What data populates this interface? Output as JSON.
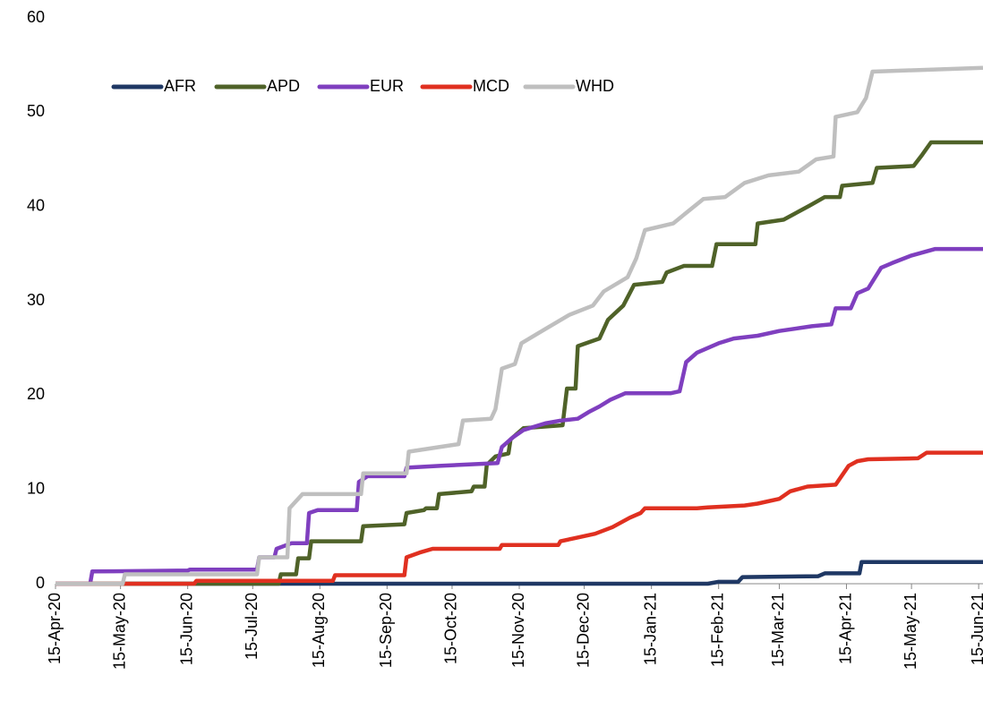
{
  "chart_data": {
    "type": "line",
    "xlim": [
      "2020-04-15",
      "2021-06-17"
    ],
    "xticks": [
      {
        "value": "2020-04-15",
        "label": "15-Apr-20"
      },
      {
        "value": "2020-05-15",
        "label": "15-May-20"
      },
      {
        "value": "2020-06-15",
        "label": "15-Jun-20"
      },
      {
        "value": "2020-07-15",
        "label": "15-Jul-20"
      },
      {
        "value": "2020-08-15",
        "label": "15-Aug-20"
      },
      {
        "value": "2020-09-15",
        "label": "15-Sep-20"
      },
      {
        "value": "2020-10-15",
        "label": "15-Oct-20"
      },
      {
        "value": "2020-11-15",
        "label": "15-Nov-20"
      },
      {
        "value": "2020-12-15",
        "label": "15-Dec-20"
      },
      {
        "value": "2021-01-15",
        "label": "15-Jan-21"
      },
      {
        "value": "2021-02-15",
        "label": "15-Feb-21"
      },
      {
        "value": "2021-03-15",
        "label": "15-Mar-21"
      },
      {
        "value": "2021-04-15",
        "label": "15-Apr-21"
      },
      {
        "value": "2021-05-15",
        "label": "15-May-21"
      },
      {
        "value": "2021-06-15",
        "label": "15-Jun-21"
      }
    ],
    "ylim": [
      0,
      60
    ],
    "yticks": [
      0,
      10,
      20,
      30,
      40,
      50,
      60
    ],
    "grid": false,
    "legend": "top-left",
    "series": [
      {
        "name": "AFR",
        "color": "#1f3864",
        "x": [
          "2020-04-15",
          "2021-02-10",
          "2021-02-15",
          "2021-02-24",
          "2021-02-26",
          "2021-04-02",
          "2021-04-05",
          "2021-04-21",
          "2021-04-22",
          "2021-06-17"
        ],
        "values": [
          0,
          0,
          0.2,
          0.2,
          0.7,
          0.8,
          1.1,
          1.1,
          2.3,
          2.3
        ]
      },
      {
        "name": "APD",
        "color": "#4f6228",
        "x": [
          "2020-04-15",
          "2020-07-27",
          "2020-07-28",
          "2020-08-04",
          "2020-08-05",
          "2020-08-10",
          "2020-08-11",
          "2020-09-03",
          "2020-09-04",
          "2020-09-23",
          "2020-09-24",
          "2020-10-02",
          "2020-10-03",
          "2020-10-08",
          "2020-10-09",
          "2020-10-24",
          "2020-10-25",
          "2020-10-30",
          "2020-10-31",
          "2020-11-04",
          "2020-11-10",
          "2020-11-11",
          "2020-11-17",
          "2020-12-05",
          "2020-12-07",
          "2020-12-11",
          "2020-12-12",
          "2020-12-22",
          "2020-12-26",
          "2021-01-02",
          "2021-01-07",
          "2021-01-20",
          "2021-01-22",
          "2021-01-30",
          "2021-02-12",
          "2021-02-14",
          "2021-03-04",
          "2021-03-05",
          "2021-03-17",
          "2021-03-29",
          "2021-04-05",
          "2021-04-12",
          "2021-04-13",
          "2021-04-27",
          "2021-04-29",
          "2021-05-16",
          "2021-05-20",
          "2021-05-24",
          "2021-06-17"
        ],
        "values": [
          0,
          0,
          1,
          1,
          2.7,
          2.7,
          4.5,
          4.5,
          6.1,
          6.3,
          7.5,
          7.8,
          8,
          8,
          9.5,
          9.8,
          10.3,
          10.3,
          12.6,
          13.5,
          13.8,
          15.3,
          16.5,
          16.8,
          20.7,
          20.7,
          25.2,
          26,
          28,
          29.5,
          31.7,
          32,
          33,
          33.7,
          33.7,
          36,
          36,
          38.2,
          38.6,
          40.1,
          41,
          41,
          42.2,
          42.5,
          44.1,
          44.3,
          45.5,
          46.8,
          46.8
        ]
      },
      {
        "name": "EUR",
        "color": "#7f3fbf",
        "x": [
          "2020-04-15",
          "2020-05-01",
          "2020-05-02",
          "2020-06-15",
          "2020-06-16",
          "2020-07-17",
          "2020-07-18",
          "2020-07-25",
          "2020-07-26",
          "2020-08-02",
          "2020-08-09",
          "2020-08-10",
          "2020-08-14",
          "2020-09-01",
          "2020-09-02",
          "2020-09-06",
          "2020-09-23",
          "2020-09-24",
          "2020-10-10",
          "2020-11-05",
          "2020-11-07",
          "2020-11-12",
          "2020-11-17",
          "2020-11-27",
          "2020-12-04",
          "2020-12-12",
          "2020-12-17",
          "2020-12-22",
          "2020-12-27",
          "2021-01-03",
          "2021-01-24",
          "2021-01-28",
          "2021-01-31",
          "2021-02-05",
          "2021-02-15",
          "2021-02-22",
          "2021-03-05",
          "2021-03-15",
          "2021-03-30",
          "2021-04-08",
          "2021-04-10",
          "2021-04-17",
          "2021-04-20",
          "2021-04-25",
          "2021-05-01",
          "2021-05-06",
          "2021-05-15",
          "2021-05-26",
          "2021-06-17"
        ],
        "values": [
          0,
          0,
          1.3,
          1.4,
          1.5,
          1.5,
          2.8,
          2.8,
          3.7,
          4.3,
          4.3,
          7.5,
          7.8,
          7.8,
          10.8,
          11.4,
          11.4,
          12.3,
          12.5,
          12.8,
          14.5,
          15.5,
          16.3,
          17,
          17.3,
          17.5,
          18.2,
          18.8,
          19.5,
          20.2,
          20.2,
          20.4,
          23.5,
          24.5,
          25.5,
          26,
          26.3,
          26.8,
          27.3,
          27.5,
          29.2,
          29.2,
          30.8,
          31.3,
          33.5,
          34,
          34.8,
          35.5,
          35.5
        ]
      },
      {
        "name": "MCD",
        "color": "#e03020",
        "x": [
          "2020-04-15",
          "2020-06-18",
          "2020-06-19",
          "2020-08-21",
          "2020-08-22",
          "2020-09-23",
          "2020-09-24",
          "2020-09-30",
          "2020-10-06",
          "2020-11-06",
          "2020-11-07",
          "2020-12-03",
          "2020-12-04",
          "2020-12-10",
          "2020-12-20",
          "2020-12-28",
          "2021-01-05",
          "2021-01-10",
          "2021-01-12",
          "2021-02-05",
          "2021-02-10",
          "2021-02-27",
          "2021-03-05",
          "2021-03-15",
          "2021-03-20",
          "2021-03-28",
          "2021-04-10",
          "2021-04-16",
          "2021-04-20",
          "2021-04-25",
          "2021-05-18",
          "2021-05-22",
          "2021-06-17"
        ],
        "values": [
          0,
          0,
          0.3,
          0.3,
          0.9,
          0.9,
          2.8,
          3.3,
          3.7,
          3.7,
          4.1,
          4.1,
          4.5,
          4.8,
          5.3,
          6,
          7,
          7.5,
          8,
          8,
          8.1,
          8.3,
          8.5,
          9,
          9.8,
          10.3,
          10.5,
          12.5,
          13,
          13.2,
          13.3,
          13.9,
          13.9
        ]
      },
      {
        "name": "WHD",
        "color": "#bfbfbf",
        "x": [
          "2020-04-15",
          "2020-05-16",
          "2020-05-17",
          "2020-07-17",
          "2020-07-18",
          "2020-07-31",
          "2020-08-01",
          "2020-08-07",
          "2020-09-03",
          "2020-09-04",
          "2020-09-24",
          "2020-09-25",
          "2020-10-18",
          "2020-10-20",
          "2020-11-02",
          "2020-11-04",
          "2020-11-07",
          "2020-11-13",
          "2020-11-16",
          "2020-11-27",
          "2020-12-08",
          "2020-12-19",
          "2020-12-24",
          "2021-01-04",
          "2021-01-08",
          "2021-01-12",
          "2021-01-25",
          "2021-02-01",
          "2021-02-08",
          "2021-02-18",
          "2021-02-27",
          "2021-03-10",
          "2021-03-24",
          "2021-04-01",
          "2021-04-09",
          "2021-04-10",
          "2021-04-20",
          "2021-04-24",
          "2021-04-27",
          "2021-06-17"
        ],
        "values": [
          0,
          0,
          1,
          1,
          2.8,
          2.8,
          8,
          9.5,
          9.5,
          11.7,
          11.7,
          14,
          14.8,
          17.3,
          17.5,
          18.5,
          22.8,
          23.3,
          25.5,
          27,
          28.5,
          29.5,
          31,
          32.5,
          34.5,
          37.5,
          38.2,
          39.5,
          40.8,
          41,
          42.5,
          43.3,
          43.7,
          45,
          45.3,
          49.5,
          50,
          51.5,
          54.3,
          54.7
        ]
      }
    ]
  }
}
